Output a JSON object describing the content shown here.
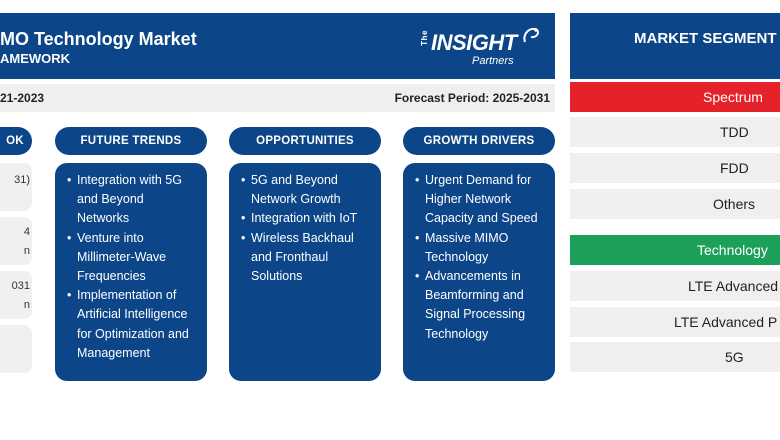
{
  "header": {
    "title": "MO Technology Market",
    "subtitle": "AMEWORK"
  },
  "logo": {
    "the": "The",
    "main": "INSIGHT",
    "partners": "Partners"
  },
  "period": {
    "historic": "21-2023",
    "forecast": "Forecast Period: 2025-2031"
  },
  "columns": {
    "outlook": "OK",
    "future_trends": "FUTURE TRENDS",
    "opportunities": "OPPORTUNITIES",
    "growth_drivers": "GROWTH DRIVERS"
  },
  "outlook_stubs": [
    "31)",
    "4",
    "n",
    "031",
    "n"
  ],
  "future_trends": [
    "Integration with 5G and Beyond Networks",
    "Venture into Millimeter-Wave Frequencies",
    "Implementation of Artificial Intelligence for Optimization and Management"
  ],
  "opportunities": [
    "5G and Beyond Network Growth",
    "Integration with IoT",
    "Wireless Backhaul and Fronthaul Solutions"
  ],
  "growth_drivers": [
    "Urgent Demand for Higher Network Capacity and Speed",
    "Massive MIMO Technology",
    "Advancements in Beamforming and Signal Processing Technology"
  ],
  "segmentation": {
    "title": "MARKET SEGMENT",
    "spectrum_label": "Spectrum",
    "spectrum": [
      "TDD",
      "FDD",
      "Others"
    ],
    "technology_label": "Technology",
    "technology": [
      "LTE Advanced",
      "LTE Advanced P",
      "5G"
    ]
  },
  "colors": {
    "navy": "#0d4589",
    "red": "#e52229",
    "green": "#1da15a",
    "light_gray": "#efefef"
  }
}
